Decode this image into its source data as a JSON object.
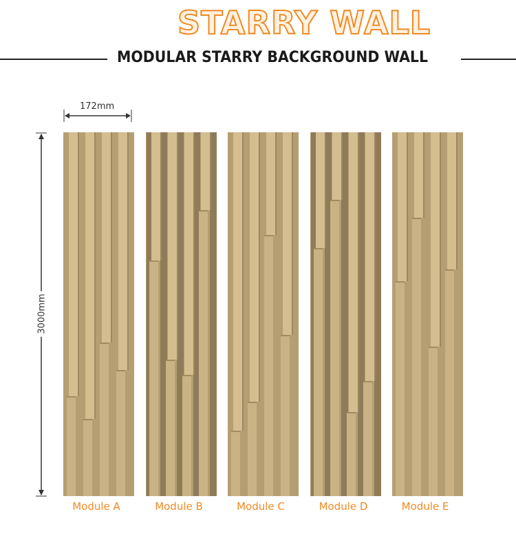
{
  "header": {
    "title": "STARRY WALL",
    "subtitle": "MODULAR STARRY BACKGROUND WALL"
  },
  "dimensions": {
    "width": "172mm",
    "height": "3000mm"
  },
  "modules": [
    {
      "label": "Module A"
    },
    {
      "label": "Module B"
    },
    {
      "label": "Module C"
    },
    {
      "label": "Module D"
    },
    {
      "label": "Module E"
    }
  ],
  "colors": {
    "accent": "#f08a24",
    "wood_light": "#d4bd8e",
    "wood_mid": "#b59f72",
    "wood_dark": "#8f7b57"
  }
}
